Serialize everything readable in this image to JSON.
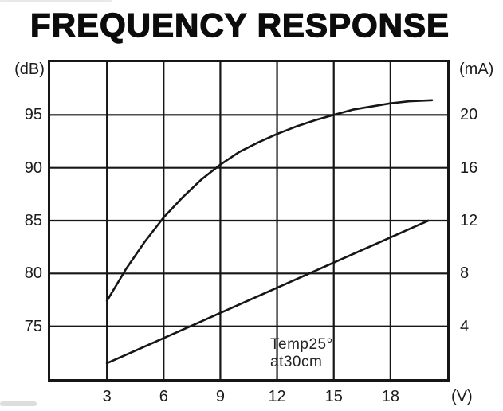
{
  "title": "FREQUENCY RESPONSE",
  "axes": {
    "left_unit": "(dB)",
    "right_unit": "(mA)",
    "x_unit": "(V)"
  },
  "annotation": {
    "line1": "Temp25°",
    "line2": "at30cm"
  },
  "colors": {
    "ink": "#161616",
    "background": "#ffffff"
  },
  "chart_data": {
    "type": "line",
    "title": "FREQUENCY RESPONSE",
    "grid": true,
    "legend": false,
    "annotation": "Temp25° at30cm",
    "x_axis": {
      "unit": "V",
      "ticks": [
        3,
        6,
        9,
        12,
        15,
        18
      ],
      "range": [
        0,
        21
      ]
    },
    "y_axis_left": {
      "unit": "dB",
      "ticks": [
        75,
        80,
        85,
        90,
        95
      ],
      "range": [
        70,
        100
      ]
    },
    "y_axis_right": {
      "unit": "mA",
      "ticks": [
        4,
        8,
        12,
        16,
        20
      ],
      "range": [
        0,
        24
      ]
    },
    "series": [
      {
        "name": "spl-db",
        "axis": "left",
        "points": [
          [
            3,
            77.4
          ],
          [
            4,
            80.4
          ],
          [
            5,
            83.0
          ],
          [
            6,
            85.3
          ],
          [
            7,
            87.2
          ],
          [
            8,
            88.9
          ],
          [
            9,
            90.3
          ],
          [
            10,
            91.5
          ],
          [
            11,
            92.4
          ],
          [
            12,
            93.2
          ],
          [
            13,
            93.9
          ],
          [
            14,
            94.5
          ],
          [
            15,
            95.0
          ],
          [
            16,
            95.5
          ],
          [
            17,
            95.8
          ],
          [
            18,
            96.1
          ],
          [
            19,
            96.3
          ],
          [
            20.2,
            96.4
          ]
        ]
      },
      {
        "name": "current-ma",
        "axis": "right",
        "points": [
          [
            3,
            1.2
          ],
          [
            20,
            12
          ]
        ]
      }
    ]
  }
}
